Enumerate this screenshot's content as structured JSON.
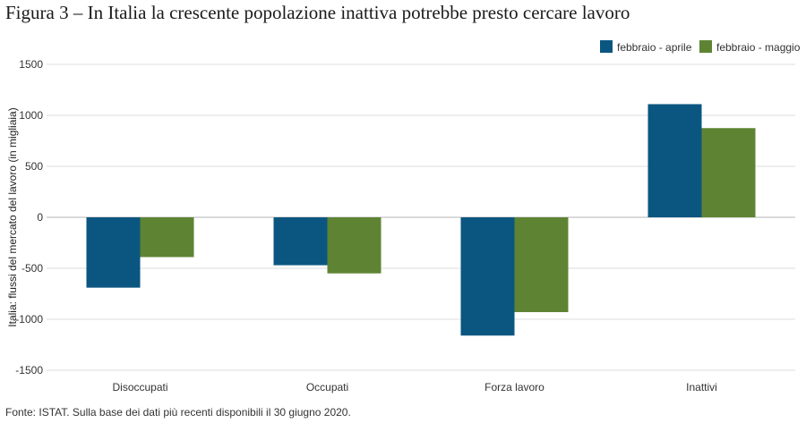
{
  "figure": {
    "title": "Figura 3 – In Italia la crescente popolazione inattiva potrebbe presto cercare lavoro",
    "source": "Fonte: ISTAT. Sulla base dei dati più recenti disponibili il 30 giugno 2020."
  },
  "chart_data": {
    "type": "bar",
    "title": "",
    "xlabel": "",
    "ylabel": "Italia: flussi del mercato del lavoro (in migliaia)",
    "categories": [
      "Disoccupati",
      "Occupati",
      "Forza lavoro",
      "Inattivi"
    ],
    "series": [
      {
        "name": "febbraio - aprile",
        "color": "#0b5681",
        "values": [
          -690,
          -470,
          -1160,
          1110
        ]
      },
      {
        "name": "febbraio - maggio",
        "color": "#5e8433",
        "values": [
          -390,
          -550,
          -930,
          875
        ]
      }
    ],
    "ylim": [
      -1500,
      1500
    ],
    "yticks": [
      1500,
      1000,
      500,
      0,
      -500,
      -1000,
      -1500
    ],
    "ytick_labels": [
      "1500",
      "1000",
      "500",
      "0",
      "-500",
      "-1000",
      "-1500"
    ],
    "grid": true,
    "legend_position": "top-right"
  }
}
